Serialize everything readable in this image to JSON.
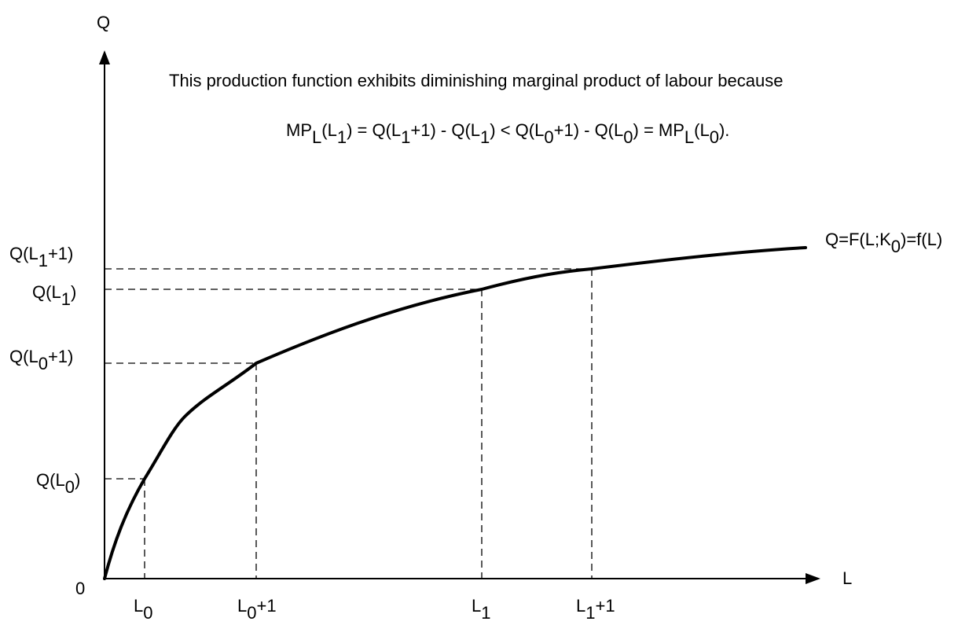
{
  "y_axis_label": "Q",
  "x_axis_label": "L",
  "origin_label": "0",
  "annotation": {
    "line1": "This production function exhibits diminishing marginal product of labour because",
    "eq": {
      "mp1_a": "MP",
      "mp1_b": "L",
      "mp1_c": "(L",
      "mp1_d": "1",
      "q1_a": ") = Q(L",
      "q1_b": "1",
      "q2_a": "+1) - Q(L",
      "q2_b": "1",
      "q3_a": ") < Q(L",
      "q3_b": "0",
      "q4_a": "+1) - Q(L",
      "q4_b": "0",
      "mp2_a": ") = MP",
      "mp2_b": "L",
      "mp2_c": "(L",
      "mp2_d": "0",
      "mp2_e": ")."
    }
  },
  "curve_label": {
    "a": "Q=F(L;K",
    "b": "0",
    "c": ")=f(L)"
  },
  "y_ticks": {
    "q_l1p1": {
      "a": "Q(L",
      "b": "1",
      "c": "+1)"
    },
    "q_l1": {
      "a": "Q(L",
      "b": "1",
      "c": ")"
    },
    "q_l0p1": {
      "a": "Q(L",
      "b": "0",
      "c": "+1)"
    },
    "q_l0": {
      "a": "Q(L",
      "b": "0",
      "c": ")"
    }
  },
  "x_ticks": {
    "l0": {
      "a": "L",
      "b": "0",
      "c": ""
    },
    "l0p1": {
      "a": "L",
      "b": "0",
      "c": "+1"
    },
    "l1": {
      "a": "L",
      "b": "1",
      "c": ""
    },
    "l1p1": {
      "a": "L",
      "b": "1",
      "c": "+1"
    }
  }
}
